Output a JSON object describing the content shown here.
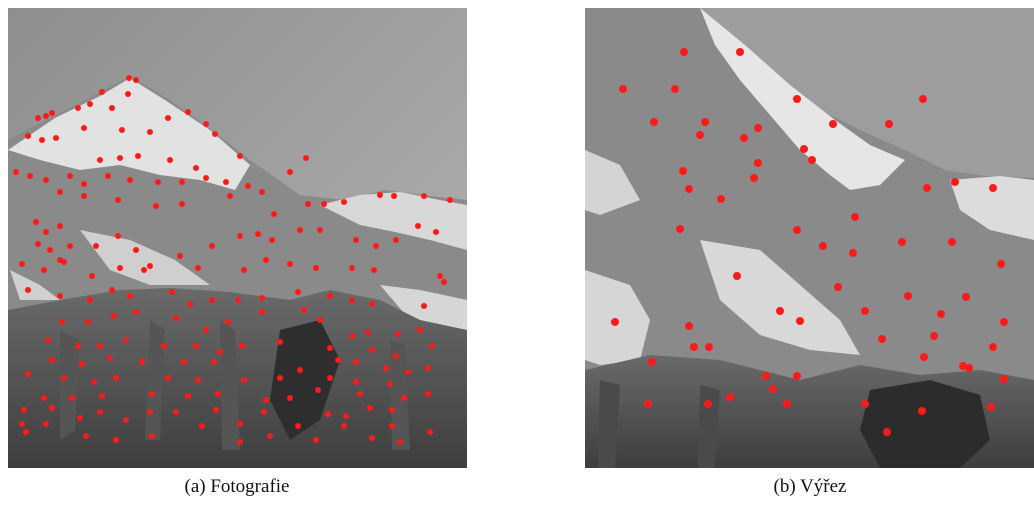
{
  "panels": [
    {
      "caption": "(a) Fotografie"
    },
    {
      "caption": "(b) Výřez"
    }
  ]
}
